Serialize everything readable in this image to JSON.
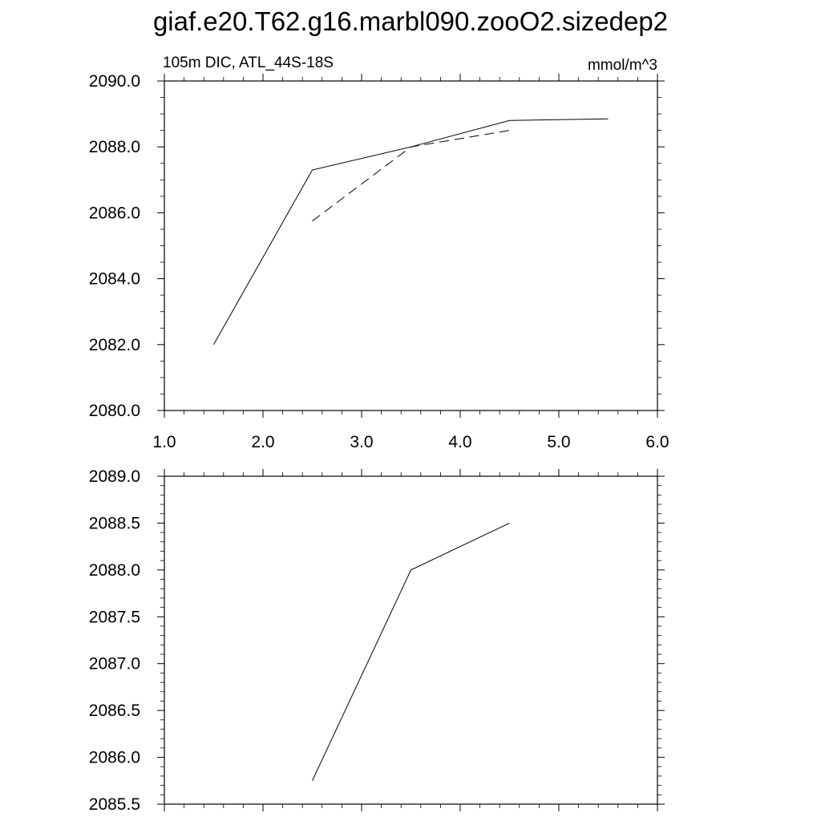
{
  "title": "giaf.e20.T62.g16.marbl090.zooO2.sizedep2",
  "chart_data": [
    {
      "type": "line",
      "left_label": "105m DIC, ATL_44S-18S",
      "right_label": "mmol/m^3",
      "xlim": [
        1.0,
        6.0
      ],
      "ylim": [
        2080.0,
        2090.0
      ],
      "x_ticks": [
        "1.0",
        "2.0",
        "3.0",
        "4.0",
        "5.0",
        "6.0"
      ],
      "y_ticks": [
        "2080.0",
        "2082.0",
        "2084.0",
        "2086.0",
        "2088.0",
        "2090.0"
      ],
      "grid": false,
      "series": [
        {
          "style": "solid",
          "x": [
            1.5,
            2.5,
            3.5,
            4.5,
            5.5
          ],
          "y": [
            2082.0,
            2087.3,
            2088.0,
            2088.8,
            2088.85
          ]
        },
        {
          "style": "dashed",
          "x": [
            2.5,
            3.5,
            4.5
          ],
          "y": [
            2085.75,
            2088.0,
            2088.5
          ]
        }
      ]
    },
    {
      "type": "line",
      "xlim": [
        1.0,
        6.0
      ],
      "ylim": [
        2085.5,
        2089.0
      ],
      "x_ticks": [],
      "y_ticks": [
        "2085.5",
        "2086.0",
        "2086.5",
        "2087.0",
        "2087.5",
        "2088.0",
        "2088.5",
        "2089.0"
      ],
      "grid": false,
      "series": [
        {
          "style": "solid",
          "x": [
            2.5,
            3.5,
            4.5
          ],
          "y": [
            2085.75,
            2088.0,
            2088.5
          ]
        }
      ]
    }
  ]
}
